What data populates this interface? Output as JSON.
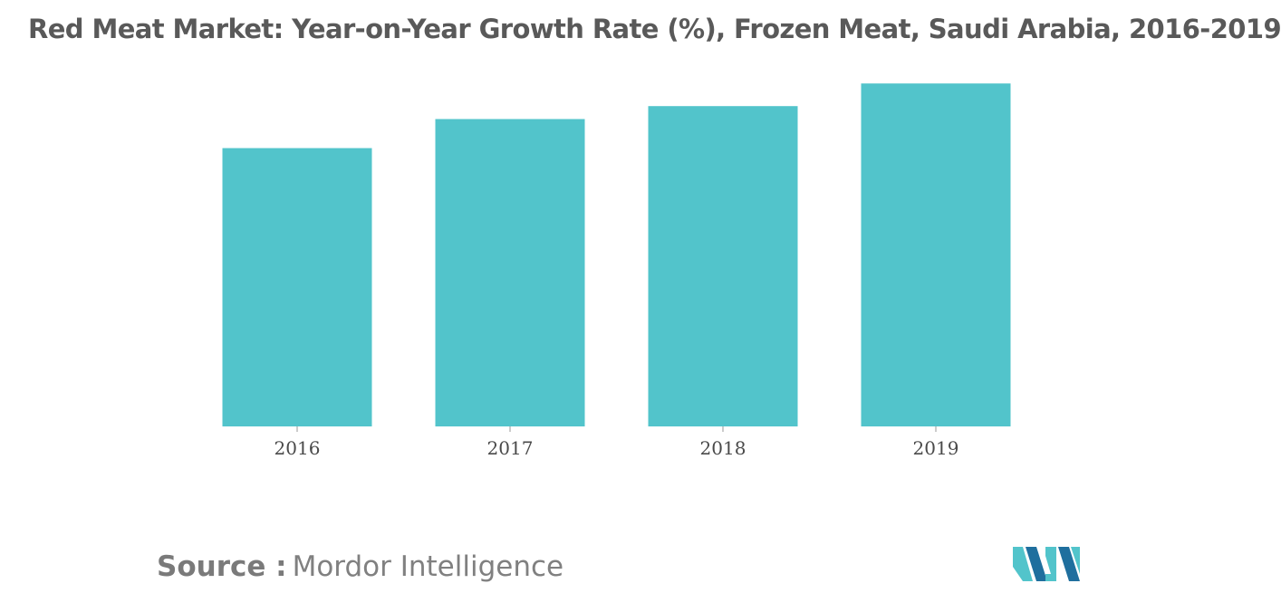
{
  "title": "Red Meat Market: Year-on-Year Growth Rate (%), Frozen Meat, Saudi Arabia, 2016-2019",
  "source": {
    "label": "Source :",
    "name": "Mordor Intelligence"
  },
  "logo": {
    "icon": "mordor-intelligence-logo"
  },
  "colors": {
    "bar": "#52c4cb",
    "axis_text": "#4a4a4a",
    "title": "#595959",
    "logo_dark": "#1f6f9e",
    "logo_light": "#52c4cb"
  },
  "chart_data": {
    "type": "bar",
    "title": "Red Meat Market: Year-on-Year Growth Rate (%), Frozen Meat, Saudi Arabia, 2016-2019",
    "categories": [
      "2016",
      "2017",
      "2018",
      "2019"
    ],
    "values": [
      8.6,
      9.5,
      9.9,
      10.6
    ],
    "ylim": [
      0,
      11.5
    ],
    "xlabel": "",
    "ylabel": "",
    "grid": false,
    "legend": "none"
  }
}
